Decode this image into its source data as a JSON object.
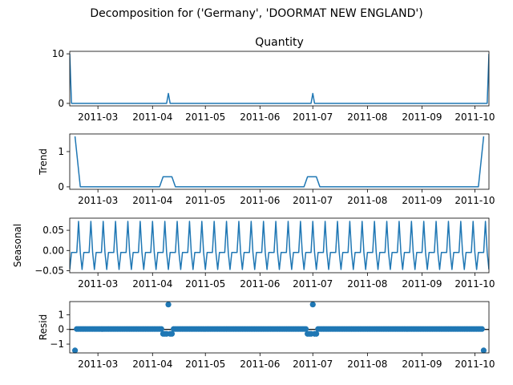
{
  "figure": {
    "suptitle": "Decomposition for ('Germany', 'DOORMAT NEW ENGLAND')"
  },
  "chart_data": [
    {
      "type": "line",
      "title": "Quantity",
      "ylabel": "",
      "xlim": [
        "2011-02-13",
        "2011-10-09"
      ],
      "ylim": [
        -0.5,
        10.5
      ],
      "yticks": [
        0,
        10
      ],
      "x_tick_labels": [
        "2011-03",
        "2011-04",
        "2011-05",
        "2011-06",
        "2011-07",
        "2011-08",
        "2011-09",
        "2011-10"
      ],
      "series": [
        {
          "color": "#1f77b4",
          "points": [
            [
              "2011-02-13",
              10
            ],
            [
              "2011-02-14",
              0
            ],
            [
              "2011-04-09",
              0
            ],
            [
              "2011-04-10",
              2
            ],
            [
              "2011-04-11",
              0
            ],
            [
              "2011-06-30",
              0
            ],
            [
              "2011-07-01",
              2
            ],
            [
              "2011-07-02",
              0
            ],
            [
              "2011-10-08",
              0
            ],
            [
              "2011-10-09",
              10
            ]
          ]
        }
      ]
    },
    {
      "type": "line",
      "title": "",
      "ylabel": "Trend",
      "xlim": [
        "2011-02-13",
        "2011-10-09"
      ],
      "ylim": [
        -0.07,
        1.5
      ],
      "yticks": [
        0,
        1
      ],
      "x_tick_labels": [
        "2011-03",
        "2011-04",
        "2011-05",
        "2011-06",
        "2011-07",
        "2011-08",
        "2011-09",
        "2011-10"
      ],
      "series": [
        {
          "color": "#1f77b4",
          "points": [
            [
              "2011-02-16",
              1.43
            ],
            [
              "2011-02-19",
              0
            ],
            [
              "2011-04-05",
              0
            ],
            [
              "2011-04-07",
              0.286
            ],
            [
              "2011-04-12",
              0.286
            ],
            [
              "2011-04-14",
              0
            ],
            [
              "2011-06-26",
              0
            ],
            [
              "2011-06-28",
              0.286
            ],
            [
              "2011-07-03",
              0.286
            ],
            [
              "2011-07-05",
              0
            ],
            [
              "2011-10-03",
              0
            ],
            [
              "2011-10-06",
              1.43
            ]
          ]
        }
      ]
    },
    {
      "type": "line",
      "title": "",
      "ylabel": "Seasonal",
      "xlim": [
        "2011-02-13",
        "2011-10-09"
      ],
      "ylim": [
        -0.055,
        0.08
      ],
      "yticks": [
        0.05,
        0.0,
        -0.05
      ],
      "ytick_labels": [
        "0.05",
        "0.00",
        "−0.05"
      ],
      "x_tick_labels": [
        "2011-03",
        "2011-04",
        "2011-05",
        "2011-06",
        "2011-07",
        "2011-08",
        "2011-09",
        "2011-10"
      ],
      "series": [
        {
          "color": "#1f77b4",
          "period_days": 7,
          "pattern": [
            -0.047,
            -0.005,
            -0.005,
            -0.005,
            -0.005,
            0.072,
            -0.005
          ]
        }
      ]
    },
    {
      "type": "scatter",
      "title": "",
      "ylabel": "Resid",
      "xlim": [
        "2011-02-13",
        "2011-10-09"
      ],
      "ylim": [
        -1.6,
        1.9
      ],
      "yticks": [
        1,
        0,
        -1
      ],
      "ytick_labels": [
        "1",
        "0",
        "−1"
      ],
      "x_tick_labels": [
        "2011-03",
        "2011-04",
        "2011-05",
        "2011-06",
        "2011-07",
        "2011-08",
        "2011-09",
        "2011-10"
      ],
      "baseline": 0,
      "series": [
        {
          "color": "#1f77b4",
          "default_value": 0.03,
          "outliers": [
            [
              "2011-02-16",
              -1.43
            ],
            [
              "2011-04-07",
              -0.3
            ],
            [
              "2011-04-08",
              -0.3
            ],
            [
              "2011-04-09",
              -0.3
            ],
            [
              "2011-04-10",
              1.7
            ],
            [
              "2011-04-11",
              -0.3
            ],
            [
              "2011-04-12",
              -0.3
            ],
            [
              "2011-06-28",
              -0.3
            ],
            [
              "2011-06-29",
              -0.3
            ],
            [
              "2011-06-30",
              -0.3
            ],
            [
              "2011-07-01",
              1.7
            ],
            [
              "2011-07-02",
              -0.3
            ],
            [
              "2011-07-03",
              -0.3
            ],
            [
              "2011-10-06",
              -1.43
            ]
          ]
        }
      ]
    }
  ]
}
